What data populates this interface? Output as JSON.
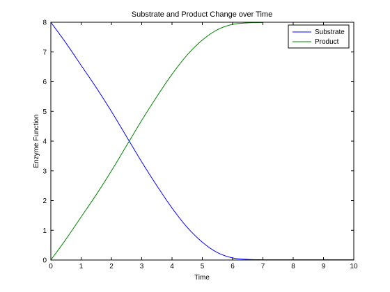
{
  "chart_data": {
    "type": "line",
    "title": "Substrate and Product Change over Time",
    "xlabel": "Time",
    "ylabel": "Enzyme Function",
    "xlim": [
      0,
      10
    ],
    "ylim": [
      0,
      8
    ],
    "xticks": [
      "0",
      "1",
      "2",
      "3",
      "4",
      "5",
      "6",
      "7",
      "8",
      "9",
      "10"
    ],
    "yticks": [
      "0",
      "1",
      "2",
      "3",
      "4",
      "5",
      "6",
      "7",
      "8"
    ],
    "grid": false,
    "legend_position": "top-right",
    "series": [
      {
        "name": "Substrate",
        "color": "#0000ff",
        "x": [
          0,
          0.5,
          1,
          1.5,
          2,
          2.5,
          3,
          3.5,
          4,
          4.5,
          5,
          5.5,
          6,
          6.5,
          7,
          7.5,
          8,
          8.5,
          9,
          9.5,
          10
        ],
        "y": [
          8.0,
          7.3,
          6.55,
          5.8,
          5.0,
          4.15,
          3.3,
          2.5,
          1.75,
          1.1,
          0.6,
          0.25,
          0.07,
          0.02,
          0.01,
          0.01,
          0.01,
          0.01,
          0.01,
          0.01,
          0.01
        ]
      },
      {
        "name": "Product",
        "color": "#008000",
        "x": [
          0,
          0.5,
          1,
          1.5,
          2,
          2.5,
          3,
          3.5,
          4,
          4.5,
          5,
          5.5,
          6,
          6.5,
          7
        ],
        "y": [
          0.0,
          0.7,
          1.45,
          2.2,
          3.0,
          3.85,
          4.7,
          5.5,
          6.25,
          6.9,
          7.4,
          7.75,
          7.93,
          7.98,
          7.99
        ]
      }
    ]
  }
}
